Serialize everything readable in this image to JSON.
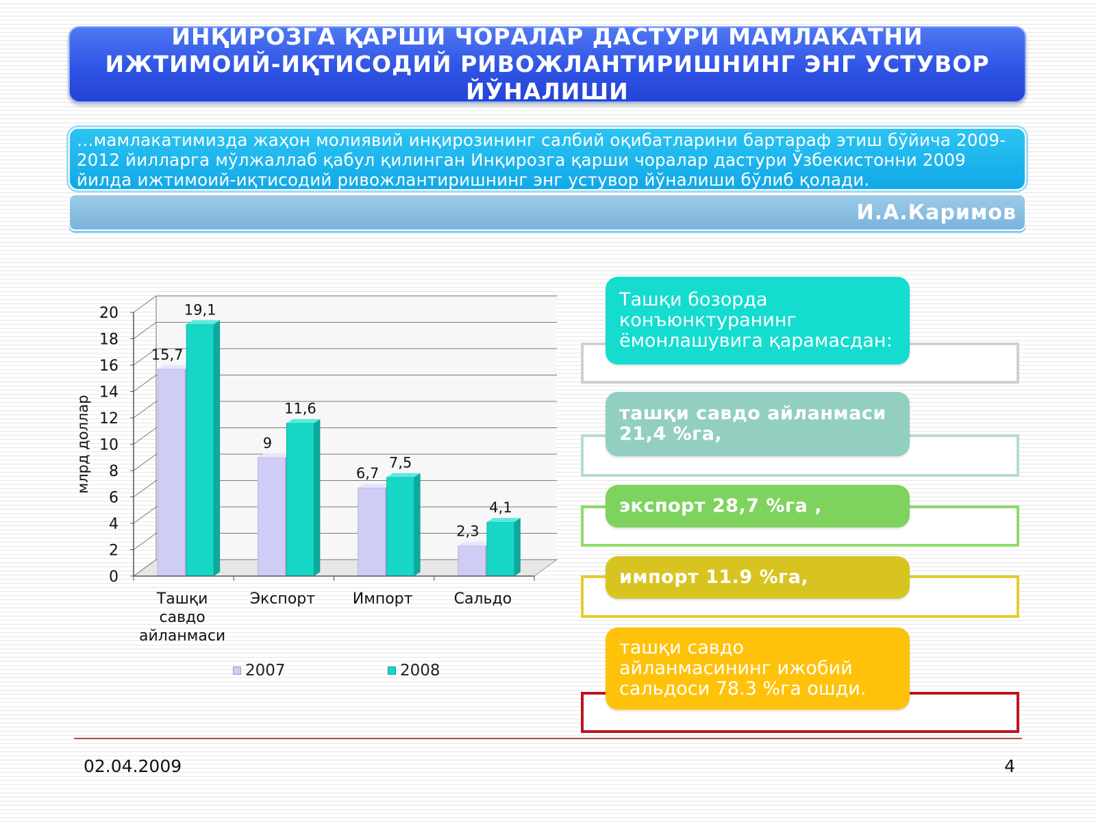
{
  "title": "ИНҚИРОЗГА ҚАРШИ ЧОРАЛАР ДАСТУРИ МАМЛАКАТНИ ИЖТИМОИЙ-ИҚТИСОДИЙ РИВОЖЛАНТИРИШНИНГ ЭНГ УСТУВОР ЙЎНАЛИШИ",
  "quote": "…мамлакатимизда жаҳон молиявий инқирозининг салбий оқибатларини бартараф этиш бўйича 2009-2012 йилларга мўлжаллаб қабул қилинган Инқирозга қарши чоралар дастури Ўзбекистонни 2009 йилда ижтимоий-иқтисодий ривожлантиришнинг энг устувор йўналиши бўлиб қолади.",
  "author": "И.А.Каримов",
  "colors": {
    "series_2007": "#cfcdf5",
    "series_2008": "#16d6c6",
    "title_blue": "#2f54e6",
    "quote_blue": "#12a8e8"
  },
  "chart_data": {
    "type": "bar",
    "categories": [
      "Ташқи савдо айланмаси",
      "Экспорт",
      "Импорт",
      "Сальдо"
    ],
    "series": [
      {
        "name": "2007",
        "values": [
          15.7,
          9,
          6.7,
          2.3
        ],
        "labels": [
          "15,7",
          "9",
          "6,7",
          "2,3"
        ]
      },
      {
        "name": "2008",
        "values": [
          19.1,
          11.6,
          7.5,
          4.1
        ],
        "labels": [
          "19,1",
          "11,6",
          "7,5",
          "4,1"
        ]
      }
    ],
    "ylabel": "млрд доллар",
    "ylim": [
      0,
      20
    ],
    "yticks": [
      "0",
      "2",
      "4",
      "6",
      "8",
      "10",
      "12",
      "14",
      "16",
      "18",
      "20"
    ],
    "grid": true,
    "legend": "bottom"
  },
  "info_boxes": [
    {
      "text": "Ташқи бозорда конъюнктуранинг ёмонлашувига қарамасдан:",
      "color": "#14dccf",
      "frame": "#cfcfcf",
      "bold": false
    },
    {
      "text": "ташқи савдо айланмаси 21,4 %га,",
      "color": "#92cfc0",
      "frame": "#b5dccf",
      "bold": true
    },
    {
      "text": "экспорт 28,7 %га ,",
      "color": "#7ed35e",
      "frame": "#8fdb66",
      "bold": true
    },
    {
      "text": "импорт 11.9 %га,",
      "color": "#d8c420",
      "frame": "#e3cd2c",
      "bold": true
    },
    {
      "text": "ташқи савдо айланмасининг ижобий сальдоси 78.3 %га ошди.",
      "color": "#ffc20a",
      "frame": "#c0121c",
      "bold": false
    }
  ],
  "footer": {
    "date": "02.04.2009",
    "page": "4"
  }
}
